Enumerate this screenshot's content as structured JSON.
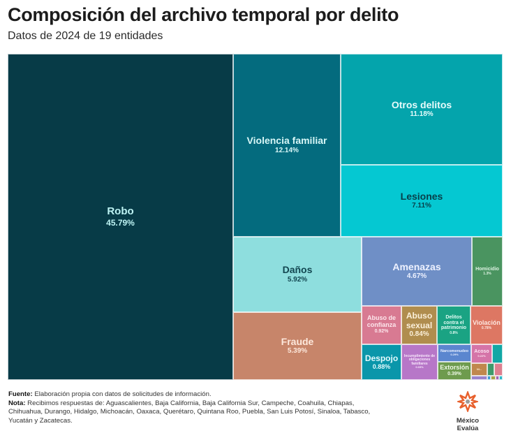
{
  "chart_data": {
    "type": "treemap",
    "title": "Composición del archivo temporal por delito",
    "subtitle": "Datos de 2024 de 19 entidades",
    "unit": "%",
    "items": [
      {
        "id": "robo",
        "label": "Robo",
        "value_label": "45.79%",
        "value": 45.79,
        "color": "#073b47",
        "text": "#bdf3f3",
        "size": 15,
        "vsize": 12
      },
      {
        "id": "violencia-familiar",
        "label": "Violencia familiar",
        "value_label": "12.14%",
        "value": 12.14,
        "color": "#046b7e",
        "text": "#d8f7f7",
        "size": 14,
        "vsize": 10
      },
      {
        "id": "otros-delitos",
        "label": "Otros delitos",
        "value_label": "11.18%",
        "value": 11.18,
        "color": "#04a4ac",
        "text": "#e6fbfb",
        "size": 14,
        "vsize": 10
      },
      {
        "id": "lesiones",
        "label": "Lesiones",
        "value_label": "7.11%",
        "value": 7.11,
        "color": "#05c8d2",
        "text": "#08404a",
        "size": 14,
        "vsize": 10
      },
      {
        "id": "danos",
        "label": "Daños",
        "value_label": "5.92%",
        "value": 5.92,
        "color": "#8edede",
        "text": "#124650",
        "size": 14,
        "vsize": 10
      },
      {
        "id": "fraude",
        "label": "Fraude",
        "value_label": "5.39%",
        "value": 5.39,
        "color": "#c7856a",
        "text": "#fde8dc",
        "size": 14,
        "vsize": 10
      },
      {
        "id": "amenazas",
        "label": "Amenazas",
        "value_label": "4.67%",
        "value": 4.67,
        "color": "#6f8fc6",
        "text": "#eef2ff",
        "size": 14,
        "vsize": 10
      },
      {
        "id": "homicidio",
        "label": "Homicidio",
        "value_label": "1.3%",
        "value": 1.3,
        "color": "#4a9460",
        "text": "#dff3e3",
        "size": 7,
        "vsize": 5
      },
      {
        "id": "abuso-confianza",
        "label": "Abuso de confianza",
        "value_label": "0.92%",
        "value": 0.92,
        "color": "#d87a92",
        "text": "#fde6ec",
        "size": 9,
        "vsize": 7
      },
      {
        "id": "abuso-sexual",
        "label": "Abuso sexual",
        "value_label": "0.84%",
        "value": 0.84,
        "color": "#b08d4e",
        "text": "#fbf0da",
        "size": 12,
        "vsize": 10
      },
      {
        "id": "delitos-patrimonio",
        "label": "Delitos contra el patrimonio",
        "value_label": "0.8%",
        "value": 0.8,
        "color": "#1aa383",
        "text": "#e1fbf3",
        "size": 7,
        "vsize": 5
      },
      {
        "id": "violacion",
        "label": "Violación",
        "value_label": "0.78%",
        "value": 0.78,
        "color": "#dd7763",
        "text": "#fde6df",
        "size": 9,
        "vsize": 5
      },
      {
        "id": "despojo",
        "label": "Despojo",
        "value_label": "0.88%",
        "value": 0.88,
        "color": "#0a96aa",
        "text": "#e3fafd",
        "size": 12,
        "vsize": 9
      },
      {
        "id": "incumplimiento",
        "label": "Incumplimiento de obligaciones familiares",
        "value_label": "0.65%",
        "value": 0.65,
        "color": "#b777c8",
        "text": "#f7e6fb",
        "size": 5,
        "vsize": 4
      },
      {
        "id": "narcomenudeo",
        "label": "Narcomenudeo",
        "value_label": "0.29%",
        "value": 0.29,
        "color": "#5b86cf",
        "text": "#e9f0ff",
        "size": 5.5,
        "vsize": 4
      },
      {
        "id": "extorsion",
        "label": "Extorsión",
        "value_label": "0.39%",
        "value": 0.39,
        "color": "#6e9b4e",
        "text": "#eef8e6",
        "size": 9,
        "vsize": 7
      },
      {
        "id": "acoso",
        "label": "Acoso",
        "value_label": "0.22%",
        "value": 0.22,
        "color": "#d574a8",
        "text": "#fde6f3",
        "size": 7,
        "vsize": 4
      },
      {
        "id": "small-teal",
        "label": "",
        "value_label": "",
        "value": 0.15,
        "color": "#11a7a5"
      },
      {
        "id": "small-brown",
        "label": "Ni...",
        "value_label": "",
        "value": 0.12,
        "color": "#c0874d",
        "text": "#fbe9d2",
        "size": 4,
        "vsize": 4
      },
      {
        "id": "small-green",
        "label": "",
        "value_label": "",
        "value": 0.06,
        "color": "#3f9a6b"
      },
      {
        "id": "small-pink",
        "label": "",
        "value_label": "",
        "value": 0.06,
        "color": "#dd8090"
      },
      {
        "id": "small-purple",
        "label": "",
        "value_label": "",
        "value": 0.04,
        "color": "#9a84cc"
      },
      {
        "id": "small-blue",
        "label": "",
        "value_label": "",
        "value": 0.02,
        "color": "#3d9bd6"
      },
      {
        "id": "small-olive",
        "label": "",
        "value_label": "",
        "value": 0.02,
        "color": "#a7a24c"
      },
      {
        "id": "small-violet",
        "label": "",
        "value_label": "",
        "value": 0.02,
        "color": "#a064b8"
      },
      {
        "id": "small-cyan",
        "label": "",
        "value_label": "",
        "value": 0.01,
        "color": "#2fb8c9"
      }
    ]
  },
  "footer": {
    "source_label": "Fuente:",
    "source_text": " Elaboración propia con datos de solicitudes de información.",
    "note_label": "Nota:",
    "note_text": " Recibimos respuestas de: Aguascalientes, Baja California, Baja California Sur, Campeche, Coahuila, Chiapas, Chihuahua, Durango, Hidalgo, Michoacán, Oaxaca, Querétaro, Quintana Roo, Puebla, San Luis Potosí, Sinaloa, Tabasco, Yucatán y Zacatecas."
  },
  "logo": {
    "text": "México Evalúa",
    "color": "#e8602c"
  }
}
